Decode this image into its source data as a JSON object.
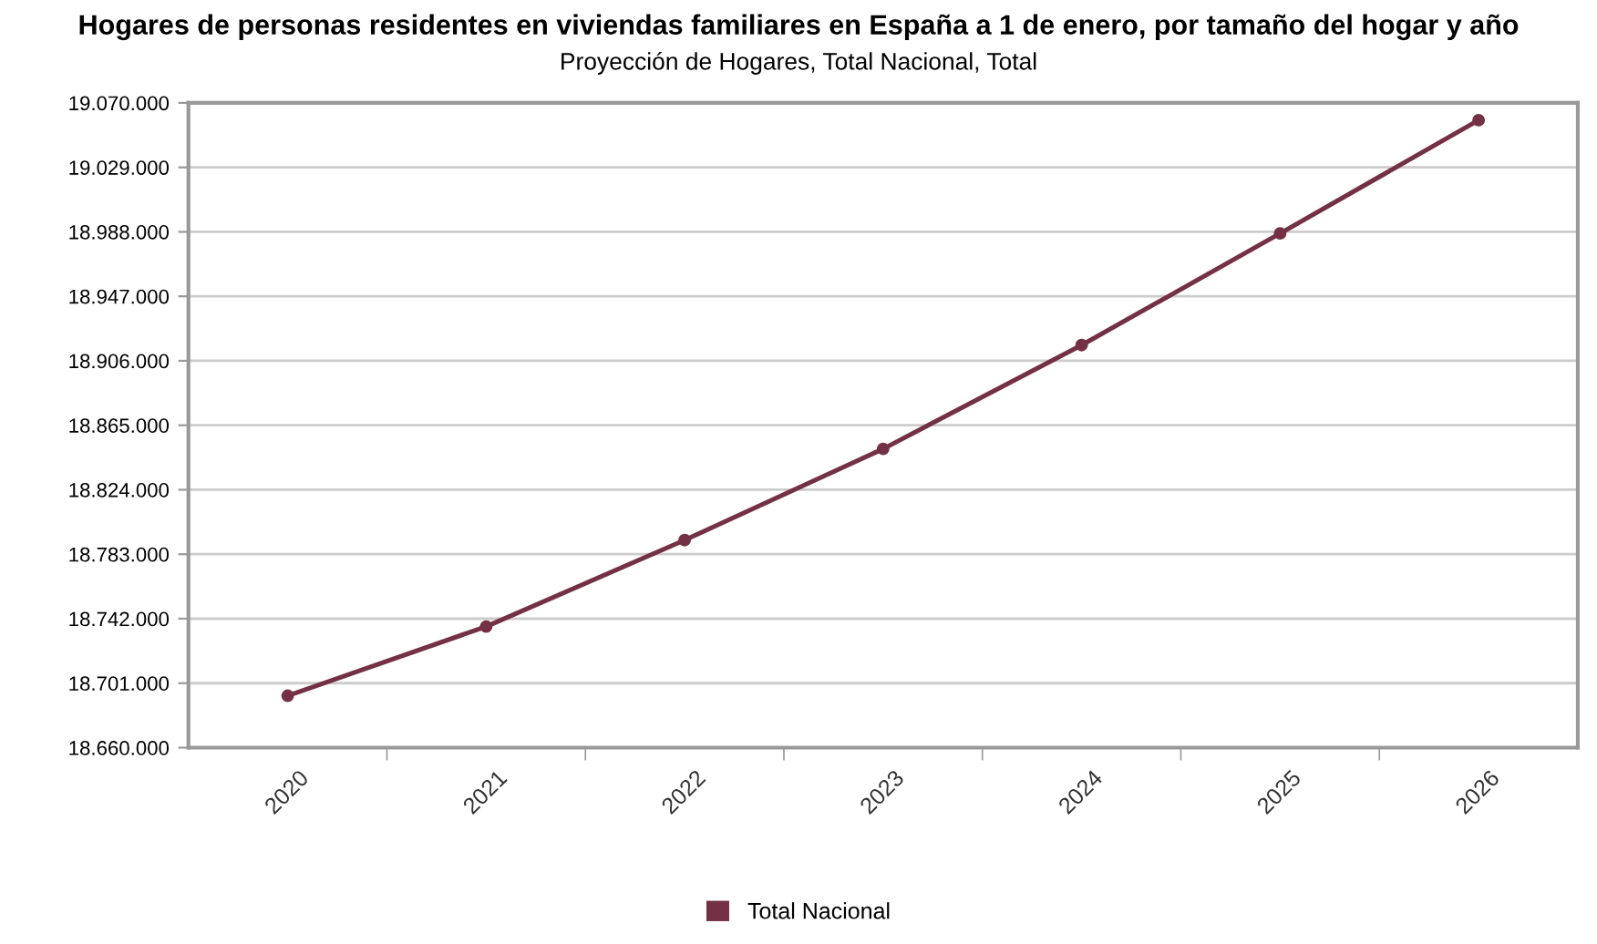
{
  "chart_data": {
    "type": "line",
    "title": "Hogares de personas residentes en viviendas familiares en España a 1 de enero, por tamaño del hogar y año",
    "subtitle": "Proyección de Hogares, Total Nacional, Total",
    "categories": [
      "2020",
      "2021",
      "2022",
      "2023",
      "2024",
      "2025",
      "2026"
    ],
    "series": [
      {
        "name": "Total Nacional",
        "color": "#743044",
        "values": [
          18693000,
          18737000,
          18792000,
          18850000,
          18916000,
          18987000,
          19059000
        ]
      }
    ],
    "ylim": [
      18660000,
      19070000
    ],
    "yticks": [
      {
        "value": 18660000,
        "label": "18.660.000"
      },
      {
        "value": 18701000,
        "label": "18.701.000"
      },
      {
        "value": 18742000,
        "label": "18.742.000"
      },
      {
        "value": 18783000,
        "label": "18.783.000"
      },
      {
        "value": 18824000,
        "label": "18.824.000"
      },
      {
        "value": 18865000,
        "label": "18.865.000"
      },
      {
        "value": 18906000,
        "label": "18.906.000"
      },
      {
        "value": 18947000,
        "label": "18.947.000"
      },
      {
        "value": 18988000,
        "label": "18.988.000"
      },
      {
        "value": 19029000,
        "label": "19.029.000"
      },
      {
        "value": 19070000,
        "label": "19.070.000"
      }
    ],
    "grid": "y",
    "legend": "bottom",
    "marker": "circle",
    "line_style": "solid"
  }
}
